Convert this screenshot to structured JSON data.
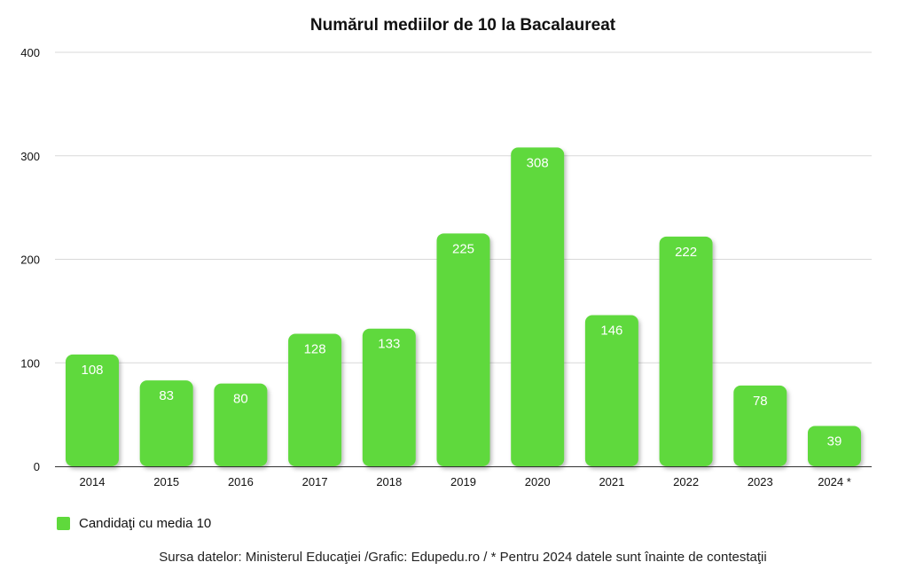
{
  "chart_data": {
    "type": "bar",
    "title": "Numărul mediilor de 10 la Bacalaureat",
    "categories": [
      "2014",
      "2015",
      "2016",
      "2017",
      "2018",
      "2019",
      "2020",
      "2021",
      "2022",
      "2023",
      "2024 *"
    ],
    "series": [
      {
        "name": "Candidaţi cu media 10",
        "values": [
          108,
          83,
          80,
          128,
          133,
          225,
          308,
          146,
          222,
          78,
          39
        ],
        "color": "#5fd93c"
      }
    ],
    "ylim": [
      0,
      400
    ],
    "yticks": [
      0,
      100,
      200,
      300,
      400
    ],
    "grid": true,
    "legend_position": "bottom-left",
    "data_labels": true,
    "label_color": "#ffffff"
  },
  "source_note": "Sursa datelor: Ministerul Educaţiei /Grafic: Edupedu.ro / * Pentru 2024 datele sunt înainte de contestaţii"
}
